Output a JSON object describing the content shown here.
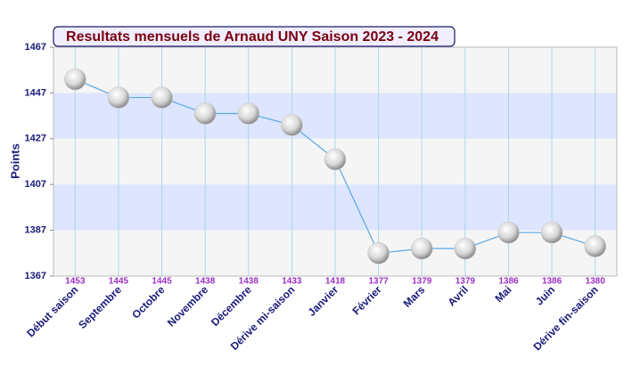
{
  "chart_data": {
    "type": "line",
    "title": "Resultats mensuels de Arnaud UNY Saison 2023 - 2024",
    "y_label": "Points",
    "categories": [
      "Début saison",
      "Septembre",
      "Octobre",
      "Novembre",
      "Décembre",
      "Dérive mi-saison",
      "Janvier",
      "Février",
      "Mars",
      "Avril",
      "Mai",
      "Juin",
      "Dérive fin-saison"
    ],
    "values": [
      1453,
      1445,
      1445,
      1438,
      1438,
      1433,
      1418,
      1377,
      1379,
      1379,
      1386,
      1386,
      1380
    ],
    "color": "#5aa8e6",
    "marker_color": "#c8c8c8",
    "ylim": [
      1367,
      1467
    ],
    "yticks": [
      1367,
      1387,
      1407,
      1427,
      1447,
      1467
    ],
    "grid": true,
    "band_colors": [
      "#f5f5f5",
      "#dde5ff"
    ]
  }
}
